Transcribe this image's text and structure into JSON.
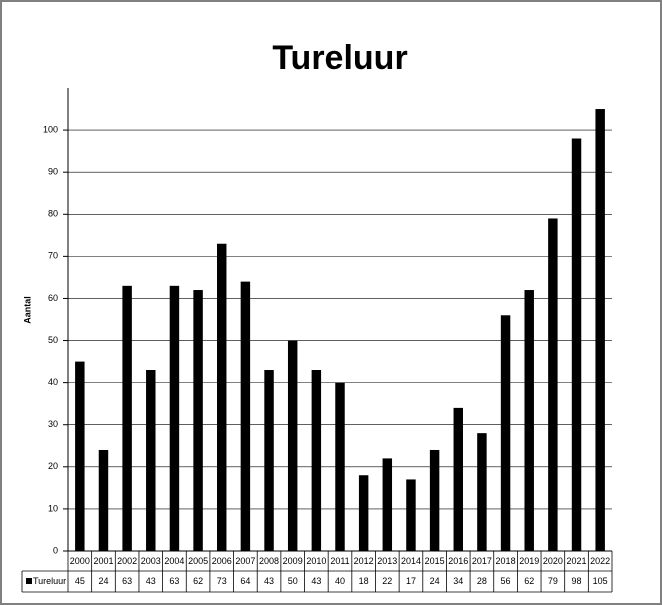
{
  "chart_data": {
    "type": "bar",
    "title": "Tureluur",
    "y_label": "Aantal",
    "categories": [
      "2000",
      "2001",
      "2002",
      "2003",
      "2004",
      "2005",
      "2006",
      "2007",
      "2008",
      "2009",
      "2010",
      "2011",
      "2012",
      "2013",
      "2014",
      "2015",
      "2016",
      "2017",
      "2018",
      "2019",
      "2020",
      "2021",
      "2022"
    ],
    "series": [
      {
        "name": "Tureluur",
        "color": "#000000",
        "values": [
          45,
          24,
          63,
          43,
          63,
          62,
          73,
          64,
          43,
          50,
          43,
          40,
          18,
          22,
          17,
          24,
          34,
          28,
          56,
          62,
          79,
          98,
          105
        ]
      }
    ],
    "ylim": [
      0,
      110
    ],
    "yticks": [
      0,
      10,
      20,
      30,
      40,
      50,
      60,
      70,
      80,
      90,
      100
    ],
    "grid": true,
    "data_table": true
  }
}
